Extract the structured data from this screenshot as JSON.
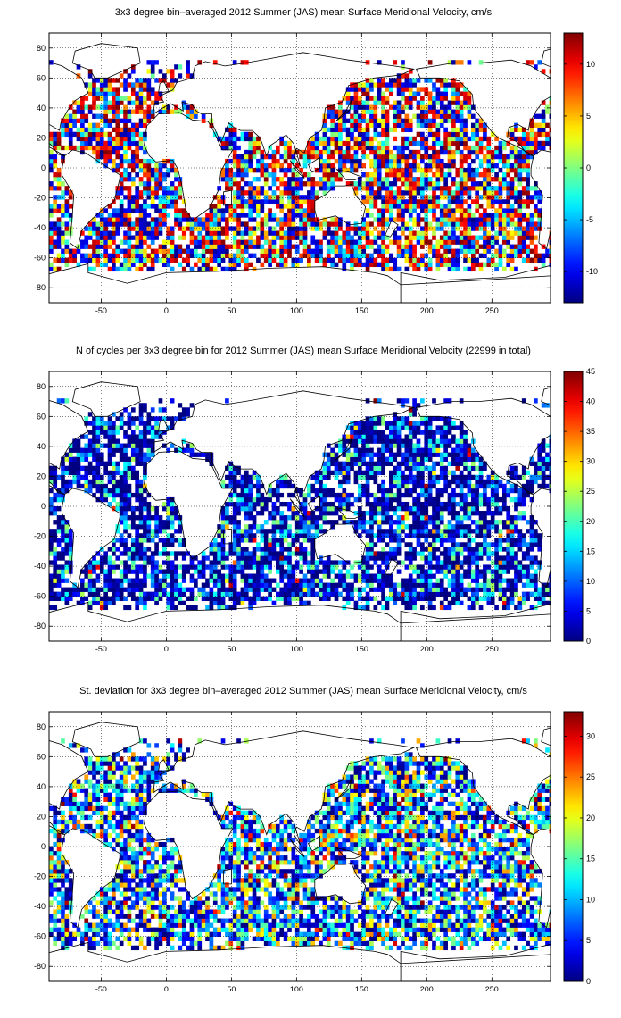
{
  "chart_data": [
    {
      "type": "heatmap",
      "title": "3x3 degree bin–averaged 2012 Summer (JAS) mean Surface Meridional Velocity, cm/s",
      "xlabel": "",
      "ylabel": "",
      "xlim": [
        -90,
        295
      ],
      "ylim": [
        -90,
        90
      ],
      "xticks": [
        -50,
        0,
        50,
        100,
        150,
        200,
        250
      ],
      "yticks": [
        -80,
        -60,
        -40,
        -20,
        0,
        20,
        40,
        60,
        80
      ],
      "grid": true,
      "grid_style": "dotted",
      "colormap": "jet",
      "colorbar_range": [
        -13,
        13
      ],
      "colorbar_ticks": [
        -10,
        -5,
        0,
        5,
        10
      ],
      "bin_size_deg": 3
    },
    {
      "type": "heatmap",
      "title": "N of cycles per 3x3 degree bin for 2012 Summer (JAS) mean Surface Meridional Velocity (22999 in total)",
      "xlabel": "",
      "ylabel": "",
      "xlim": [
        -90,
        295
      ],
      "ylim": [
        -90,
        90
      ],
      "xticks": [
        -50,
        0,
        50,
        100,
        150,
        200,
        250
      ],
      "yticks": [
        -80,
        -60,
        -40,
        -20,
        0,
        20,
        40,
        60,
        80
      ],
      "grid": true,
      "grid_style": "dotted",
      "colormap": "jet",
      "colorbar_range": [
        0,
        45
      ],
      "colorbar_ticks": [
        0,
        5,
        10,
        15,
        20,
        25,
        30,
        35,
        40,
        45
      ],
      "bin_size_deg": 3
    },
    {
      "type": "heatmap",
      "title": "St. deviation for 3x3 degree bin–averaged 2012 Summer (JAS) mean Surface Meridional Velocity, cm/s",
      "xlabel": "",
      "ylabel": "",
      "xlim": [
        -90,
        295
      ],
      "ylim": [
        -90,
        90
      ],
      "xticks": [
        -50,
        0,
        50,
        100,
        150,
        200,
        250
      ],
      "yticks": [
        -80,
        -60,
        -40,
        -20,
        0,
        20,
        40,
        60,
        80
      ],
      "grid": true,
      "grid_style": "dotted",
      "colormap": "jet",
      "colorbar_range": [
        0,
        33
      ],
      "colorbar_ticks": [
        0,
        5,
        10,
        15,
        20,
        25,
        30
      ],
      "bin_size_deg": 3
    }
  ]
}
